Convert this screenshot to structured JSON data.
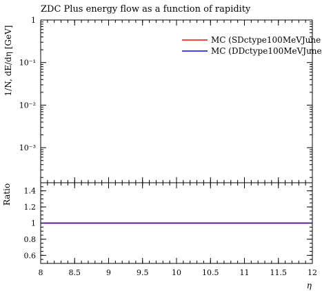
{
  "chart_data": {
    "type": "line",
    "title": "ZDC Plus energy flow as a function of rapidity",
    "xlabel": "η",
    "ylabel": "1/N, dE/dη [GeV]",
    "ratio_label": "Ratio",
    "xlim": [
      8,
      12
    ],
    "ylim": [
      0.00015,
      1
    ],
    "yscale": "log",
    "ratio_ylim": [
      0.5,
      1.5
    ],
    "x_ticks": [
      8,
      8.5,
      9,
      9.5,
      10,
      10.5,
      11,
      11.5,
      12
    ],
    "x_tick_labels": [
      "8",
      "8.5",
      "9",
      "9.5",
      "10",
      "10.5",
      "11",
      "11.5",
      "12"
    ],
    "y_ticks": [
      0.001,
      0.01,
      0.1,
      1
    ],
    "y_tick_labels": [
      "10⁻³",
      "10⁻²",
      "10⁻¹",
      "1"
    ],
    "ratio_ticks": [
      0.6,
      0.8,
      1,
      1.2,
      1.4
    ],
    "ratio_tick_labels": [
      "0.6",
      "0.8",
      "1",
      "1.2",
      "1.4"
    ],
    "legend_position": "top-right",
    "series": [
      {
        "name": "MC (SDctype100MeVJune",
        "color": "#ff0000",
        "x": [],
        "y": [],
        "ratio": [
          [
            8,
            1
          ],
          [
            12,
            1
          ]
        ]
      },
      {
        "name": "MC (DDctype100MeVJune",
        "color": "#0000ff",
        "x": [],
        "y": [],
        "ratio": [
          [
            8,
            1
          ],
          [
            12,
            1
          ]
        ]
      }
    ]
  }
}
